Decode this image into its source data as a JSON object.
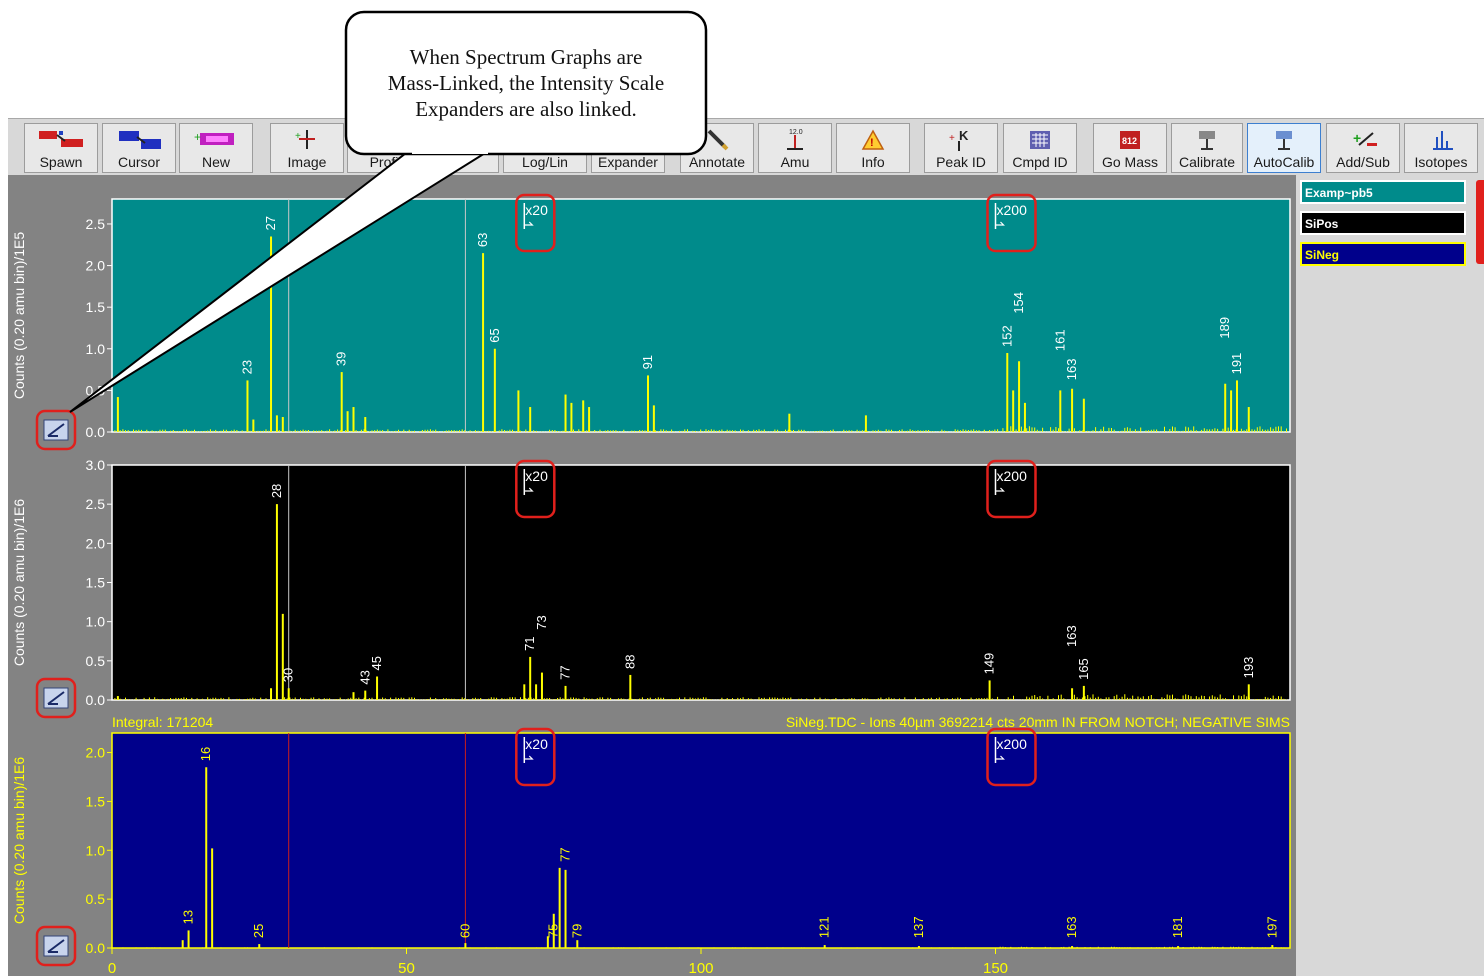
{
  "callout": {
    "lines": [
      "When Spectrum Graphs are",
      "Mass-Linked, the Intensity Scale",
      "Expanders are also linked."
    ]
  },
  "toolbar": {
    "buttons": [
      {
        "label": "Spawn",
        "icon": "spawn-icon"
      },
      {
        "label": "Cursor",
        "icon": "cursor-icon"
      },
      {
        "label": "New",
        "icon": "new-icon"
      },
      {
        "label": "Image",
        "icon": "image-icon"
      },
      {
        "label": "Profi",
        "icon": "profile-icon"
      },
      {
        "label": "s",
        "icon": "stats-icon"
      },
      {
        "label": "Log/Lin",
        "icon": "loglin-icon"
      },
      {
        "label": "Expander",
        "icon": "expander-icon"
      },
      {
        "label": "Annotate",
        "icon": "pencil-icon"
      },
      {
        "label": "Amu",
        "icon": "amu-icon"
      },
      {
        "label": "Info",
        "icon": "info-icon"
      },
      {
        "label": "Peak ID",
        "icon": "peak-id-icon"
      },
      {
        "label": "Cmpd ID",
        "icon": "compound-id-icon"
      },
      {
        "label": "Go Mass",
        "icon": "go-mass-icon"
      },
      {
        "label": "Calibrate",
        "icon": "calibrate-icon"
      },
      {
        "label": "AutoCalib",
        "icon": "autocalib-icon",
        "active": true
      },
      {
        "label": "Add/Sub",
        "icon": "add-sub-icon"
      },
      {
        "label": "Isotopes",
        "icon": "isotopes-icon"
      }
    ]
  },
  "legend": [
    {
      "label": "Examp~pb5",
      "bg": "#008b8b",
      "fg": "#ffffff",
      "border": "#ffffff"
    },
    {
      "label": "SiPos",
      "bg": "#000000",
      "fg": "#ffffff",
      "border": "#ffffff"
    },
    {
      "label": "SiNeg",
      "bg": "#00008b",
      "fg": "#ffff00",
      "border": "#ffff00"
    }
  ],
  "colors": {
    "accent_red": "#e0201c",
    "trace": "#ffff00",
    "teal": "#008b8b",
    "black": "#000000",
    "navy": "#00008b",
    "workarea": "#838383"
  },
  "chart_data": [
    {
      "type": "line",
      "name": "Examp~pb5",
      "ylabel": "Counts (0.20 amu bin)/1E5",
      "ylim": [
        0,
        2.8
      ],
      "yticks": [
        0.0,
        0.5,
        1.0,
        1.5,
        2.0,
        2.5
      ],
      "xlim": [
        0,
        200
      ],
      "bg": "#008b8b",
      "trace": "#ffff00",
      "markers": [
        30,
        60
      ],
      "marker_color": "#c8c8c8",
      "expanders": [
        {
          "x": 70,
          "label": "x20"
        },
        {
          "x": 150,
          "label": "x200"
        }
      ],
      "peaks": [
        {
          "x": 1,
          "y": 0.42
        },
        {
          "x": 23,
          "y": 0.62,
          "label": "23"
        },
        {
          "x": 24,
          "y": 0.15
        },
        {
          "x": 27,
          "y": 2.35,
          "label": "27"
        },
        {
          "x": 28,
          "y": 0.2
        },
        {
          "x": 29,
          "y": 0.18
        },
        {
          "x": 39,
          "y": 0.72,
          "label": "39"
        },
        {
          "x": 40,
          "y": 0.25
        },
        {
          "x": 41,
          "y": 0.3
        },
        {
          "x": 43,
          "y": 0.18
        },
        {
          "x": 63,
          "y": 2.15,
          "label": "63"
        },
        {
          "x": 65,
          "y": 1.0,
          "label": "65"
        },
        {
          "x": 69,
          "y": 0.5
        },
        {
          "x": 71,
          "y": 0.3
        },
        {
          "x": 77,
          "y": 0.45
        },
        {
          "x": 78,
          "y": 0.35
        },
        {
          "x": 80,
          "y": 0.38
        },
        {
          "x": 81,
          "y": 0.3
        },
        {
          "x": 91,
          "y": 0.68,
          "label": "91"
        },
        {
          "x": 92,
          "y": 0.32
        },
        {
          "x": 115,
          "y": 0.22
        },
        {
          "x": 128,
          "y": 0.2
        },
        {
          "x": 152,
          "y": 0.95,
          "label": "152"
        },
        {
          "x": 153,
          "y": 0.5
        },
        {
          "x": 154,
          "y": 0.85
        },
        {
          "x": 155,
          "y": 0.35
        },
        {
          "x": 161,
          "y": 0.5
        },
        {
          "x": 163,
          "y": 0.52
        },
        {
          "x": 165,
          "y": 0.4
        },
        {
          "x": 189,
          "y": 0.58
        },
        {
          "x": 190,
          "y": 0.5
        },
        {
          "x": 191,
          "y": 0.62
        },
        {
          "x": 193,
          "y": 0.3
        }
      ],
      "labels": [
        {
          "x": 23,
          "y": 0.62,
          "text": "23"
        },
        {
          "x": 27,
          "y": 2.35,
          "text": "27"
        },
        {
          "x": 39,
          "y": 0.72,
          "text": "39"
        },
        {
          "x": 63,
          "y": 2.15,
          "text": "63"
        },
        {
          "x": 65,
          "y": 1.0,
          "text": "65"
        },
        {
          "x": 91,
          "y": 0.68,
          "text": "91"
        },
        {
          "x": 152,
          "y": 0.95,
          "text": "152"
        },
        {
          "x": 154,
          "y": 1.35,
          "text": "154"
        },
        {
          "x": 161,
          "y": 0.9,
          "text": "161"
        },
        {
          "x": 163,
          "y": 0.55,
          "text": "163"
        },
        {
          "x": 189,
          "y": 1.05,
          "text": "189"
        },
        {
          "x": 191,
          "y": 0.62,
          "text": "191"
        }
      ]
    },
    {
      "type": "line",
      "name": "SiPos",
      "ylabel": "Counts (0.20 amu bin)/1E6",
      "ylim": [
        0,
        3.0
      ],
      "yticks": [
        0.0,
        0.5,
        1.0,
        1.5,
        2.0,
        2.5,
        3.0
      ],
      "xlim": [
        0,
        200
      ],
      "bg": "#000000",
      "trace": "#ffff00",
      "markers": [
        30,
        60
      ],
      "marker_color": "#c8c8c8",
      "expanders": [
        {
          "x": 70,
          "label": "x20"
        },
        {
          "x": 150,
          "label": "x200"
        }
      ],
      "peaks": [
        {
          "x": 1,
          "y": 0.05
        },
        {
          "x": 27,
          "y": 0.15
        },
        {
          "x": 28,
          "y": 2.5,
          "label": "28"
        },
        {
          "x": 29,
          "y": 1.1
        },
        {
          "x": 30,
          "y": 0.15,
          "label": "30"
        },
        {
          "x": 41,
          "y": 0.1
        },
        {
          "x": 43,
          "y": 0.12,
          "label": "43"
        },
        {
          "x": 45,
          "y": 0.3,
          "label": "45"
        },
        {
          "x": 70,
          "y": 0.2
        },
        {
          "x": 71,
          "y": 0.55,
          "label": "71"
        },
        {
          "x": 72,
          "y": 0.2
        },
        {
          "x": 73,
          "y": 0.35,
          "label": "73"
        },
        {
          "x": 77,
          "y": 0.18,
          "label": "77"
        },
        {
          "x": 88,
          "y": 0.32,
          "label": "88"
        },
        {
          "x": 149,
          "y": 0.25,
          "label": "149"
        },
        {
          "x": 163,
          "y": 0.15,
          "label": "163"
        },
        {
          "x": 165,
          "y": 0.18,
          "label": "165"
        },
        {
          "x": 193,
          "y": 0.2,
          "label": "193"
        }
      ],
      "labels": [
        {
          "x": 28,
          "y": 2.5,
          "text": "28"
        },
        {
          "x": 30,
          "y": 0.15,
          "text": "30"
        },
        {
          "x": 43,
          "y": 0.12,
          "text": "43"
        },
        {
          "x": 45,
          "y": 0.3,
          "text": "45"
        },
        {
          "x": 71,
          "y": 0.55,
          "text": "71"
        },
        {
          "x": 73,
          "y": 0.82,
          "text": "73"
        },
        {
          "x": 77,
          "y": 0.18,
          "text": "77"
        },
        {
          "x": 88,
          "y": 0.32,
          "text": "88"
        },
        {
          "x": 149,
          "y": 0.25,
          "text": "149"
        },
        {
          "x": 163,
          "y": 0.6,
          "text": "163"
        },
        {
          "x": 165,
          "y": 0.18,
          "text": "165"
        },
        {
          "x": 193,
          "y": 0.2,
          "text": "193"
        }
      ]
    },
    {
      "type": "line",
      "name": "SiNeg",
      "ylabel": "Counts (0.20 amu bin)/1E6",
      "ylim": [
        0,
        2.2
      ],
      "yticks": [
        0.0,
        0.5,
        1.0,
        1.5,
        2.0
      ],
      "xlim": [
        0,
        200
      ],
      "xticks": [
        0,
        50,
        100,
        150
      ],
      "bg": "#00008b",
      "trace": "#ffff00",
      "markers": [
        30,
        60
      ],
      "marker_color": "#c81e1e",
      "expanders": [
        {
          "x": 70,
          "label": "x20"
        },
        {
          "x": 150,
          "label": "x200"
        }
      ],
      "info_left": "Integral: 171204",
      "info_right": "SiNeg.TDC - Ions 40µm 3692214 cts 20mm IN FROM NOTCH; NEGATIVE SIMS",
      "peaks": [
        {
          "x": 12,
          "y": 0.08
        },
        {
          "x": 13,
          "y": 0.18,
          "label": "13"
        },
        {
          "x": 16,
          "y": 1.85,
          "label": "16"
        },
        {
          "x": 17,
          "y": 1.02
        },
        {
          "x": 25,
          "y": 0.04,
          "label": "25"
        },
        {
          "x": 60,
          "y": 0.05,
          "label": "60"
        },
        {
          "x": 74,
          "y": 0.12
        },
        {
          "x": 75,
          "y": 0.35,
          "label": "75"
        },
        {
          "x": 76,
          "y": 0.82
        },
        {
          "x": 77,
          "y": 0.8,
          "label": "77"
        },
        {
          "x": 79,
          "y": 0.08,
          "label": "79"
        },
        {
          "x": 121,
          "y": 0.03
        },
        {
          "x": 137,
          "y": 0.02
        },
        {
          "x": 163,
          "y": 0.02
        },
        {
          "x": 181,
          "y": 0.02
        },
        {
          "x": 197,
          "y": 0.03
        }
      ],
      "labels": [
        {
          "x": 13,
          "y": 0.18,
          "text": "13"
        },
        {
          "x": 16,
          "y": 1.85,
          "text": "16"
        },
        {
          "x": 25,
          "y": 0.04,
          "text": "25"
        },
        {
          "x": 60,
          "y": 0.04,
          "text": "60"
        },
        {
          "x": 75,
          "y": 0.04,
          "text": "75"
        },
        {
          "x": 77,
          "y": 0.82,
          "text": "77"
        },
        {
          "x": 79,
          "y": 0.04,
          "text": "79"
        },
        {
          "x": 121,
          "y": 0.04,
          "text": "121"
        },
        {
          "x": 137,
          "y": 0.04,
          "text": "137"
        },
        {
          "x": 163,
          "y": 0.04,
          "text": "163"
        },
        {
          "x": 181,
          "y": 0.04,
          "text": "181"
        },
        {
          "x": 197,
          "y": 0.04,
          "text": "197"
        }
      ]
    }
  ]
}
